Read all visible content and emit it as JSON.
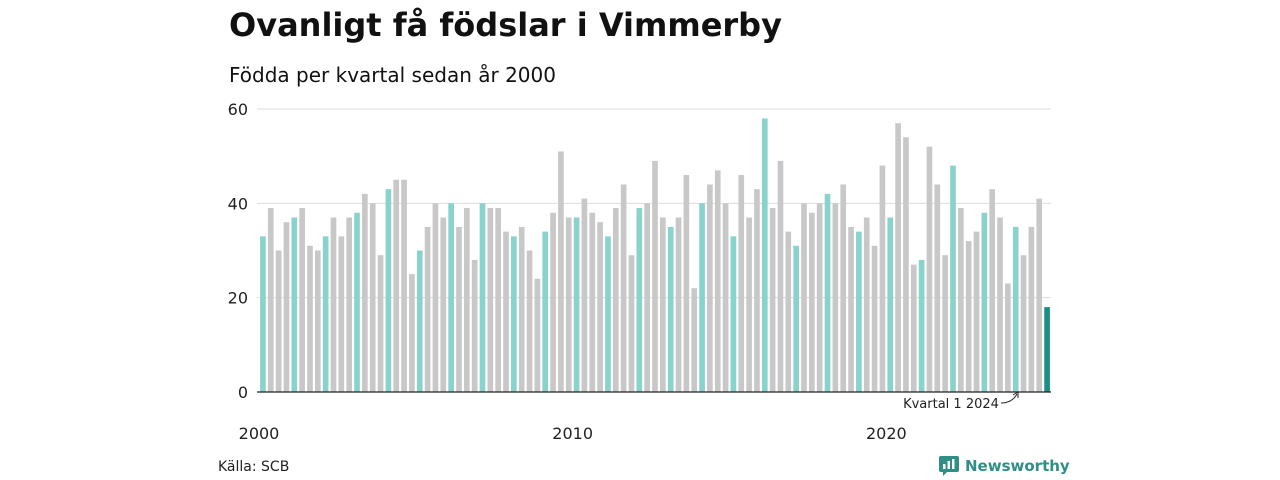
{
  "title": "Ovanligt få födslar i Vimmerby",
  "subtitle": "Födda per kvartal sedan år 2000",
  "source": "Källa: SCB",
  "brand": {
    "name": "Newsworthy",
    "icon": "bar-chart-logo-icon"
  },
  "colors": {
    "q1": "#88d3cb",
    "other": "#c8c8c8",
    "latest": "#1b8e86",
    "grid": "#dddddd",
    "axis": "#222222"
  },
  "chart_data": {
    "type": "bar",
    "title": "Ovanligt få födslar i Vimmerby",
    "subtitle": "Födda per kvartal sedan år 2000",
    "ylim": [
      0,
      60
    ],
    "y_ticks": [
      "0",
      "20",
      "40",
      "60"
    ],
    "x_tick_labels": [
      "2000",
      "2010",
      "2020"
    ],
    "x_tick_years": [
      2000,
      2010,
      2020
    ],
    "start_year": 2000,
    "grid": true,
    "annotation": "Kvartal 1 2024",
    "series": [
      {
        "values": [
          33,
          39,
          30,
          36,
          37,
          39,
          31,
          30,
          33,
          37,
          33,
          37,
          38,
          42,
          40,
          29,
          43,
          45,
          45,
          25,
          30,
          35,
          40,
          37,
          40,
          35,
          39,
          28,
          40,
          39,
          39,
          34,
          33,
          35,
          30,
          24,
          34,
          38,
          51,
          37,
          37,
          41,
          38,
          36,
          33,
          39,
          44,
          29,
          39,
          40,
          49,
          37,
          35,
          37,
          46,
          22,
          40,
          44,
          47,
          40,
          33,
          46,
          37,
          43,
          58,
          39,
          49,
          34,
          31,
          40,
          38,
          40,
          42,
          40,
          44,
          35,
          34,
          37,
          31,
          48,
          37,
          57,
          54,
          27,
          28,
          52,
          44,
          29,
          48,
          39,
          32,
          34,
          38,
          43,
          37,
          23,
          35,
          29,
          35,
          41,
          18
        ]
      }
    ]
  }
}
